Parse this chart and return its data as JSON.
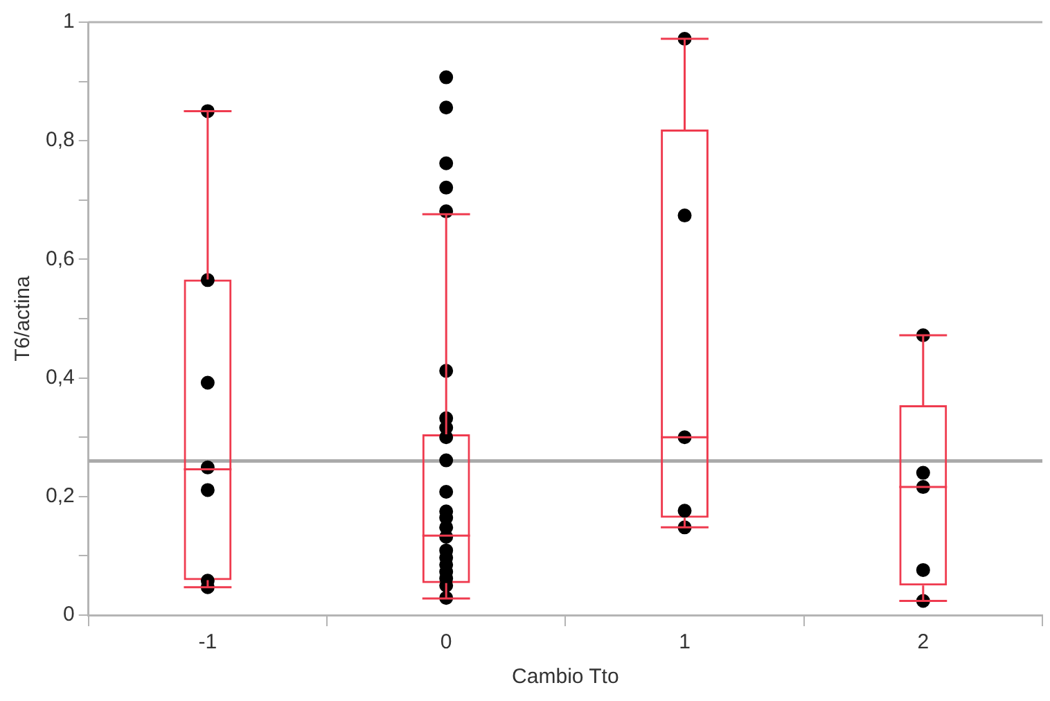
{
  "chart_data": {
    "type": "box",
    "xlabel": "Cambio Tto",
    "ylabel": "T6/actina",
    "categories": [
      "-1",
      "0",
      "1",
      "2"
    ],
    "ylim": [
      0,
      1
    ],
    "yticks": [
      0,
      {
        "value": 0.1,
        "label": null
      },
      {
        "value": 0.2,
        "label": "0,2"
      },
      {
        "value": 0.3,
        "label": null
      },
      {
        "value": 0.4,
        "label": "0,4"
      },
      {
        "value": 0.5,
        "label": null
      },
      {
        "value": 0.6,
        "label": "0,6"
      },
      {
        "value": 0.7,
        "label": null
      },
      {
        "value": 0.8,
        "label": "0,8"
      },
      {
        "value": 0.9,
        "label": null
      },
      1
    ],
    "grid": false,
    "legend": false,
    "series": [
      {
        "type": "box",
        "color": "#ef3b4f",
        "boxes": [
          {
            "low": 0.047,
            "q1": 0.059,
            "median": 0.246,
            "q3": 0.566,
            "high": 0.85
          },
          {
            "low": 0.028,
            "q1": 0.054,
            "median": 0.134,
            "q3": 0.305,
            "high": 0.676
          },
          {
            "low": 0.148,
            "q1": 0.164,
            "median": 0.3,
            "q3": 0.819,
            "high": 0.972
          },
          {
            "low": 0.024,
            "q1": 0.05,
            "median": 0.216,
            "q3": 0.354,
            "high": 0.472
          }
        ]
      },
      {
        "type": "scatter",
        "color": "#000000",
        "marker": "circle",
        "x": [
          "-1",
          "-1",
          "-1",
          "-1",
          "-1",
          "-1",
          "-1",
          "0",
          "0",
          "0",
          "0",
          "0",
          "0",
          "0",
          "0",
          "0",
          "0",
          "0",
          "0",
          "0",
          "0",
          "0",
          "0",
          "0",
          "0",
          "0",
          "0",
          "0",
          "0",
          "0",
          "1",
          "1",
          "1",
          "1",
          "1",
          "2",
          "2",
          "2",
          "2",
          "2"
        ],
        "values": [
          0.85,
          0.565,
          0.392,
          0.249,
          0.211,
          0.058,
          0.047,
          0.907,
          0.856,
          0.762,
          0.721,
          0.681,
          0.412,
          0.332,
          0.316,
          0.3,
          0.261,
          0.208,
          0.175,
          0.164,
          0.148,
          0.132,
          0.109,
          0.097,
          0.085,
          0.073,
          0.062,
          0.05,
          null,
          0.029,
          0.972,
          0.674,
          0.3,
          0.176,
          0.148,
          0.472,
          0.24,
          0.216,
          0.076,
          0.024
        ]
      }
    ],
    "ref_lines": [
      {
        "axis": "y",
        "value": 0.26,
        "color": "#aaaaaa"
      }
    ]
  }
}
